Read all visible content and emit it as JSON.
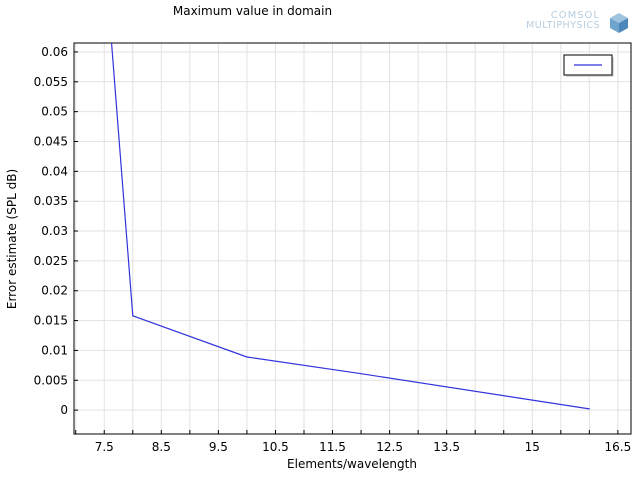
{
  "title": "Maximum value in domain",
  "logo": {
    "line1": "COMSOL",
    "line2": "MULTIPHYSICS"
  },
  "chart_data": {
    "type": "line",
    "title": "Maximum value in domain",
    "xlabel": "Elements/wavelength",
    "ylabel": "Error estimate (SPL dB)",
    "xlim": [
      6.97,
      16.73
    ],
    "ylim": [
      -0.004,
      0.0615
    ],
    "xticks": [
      "7.5",
      "8.5",
      "9.5",
      "10.5",
      "11.5",
      "12.5",
      "13.5",
      "15",
      "16.5"
    ],
    "xtick_values": [
      7.5,
      8.5,
      9.5,
      10.5,
      11.5,
      12.5,
      13.5,
      15,
      16.5
    ],
    "yticks": [
      "0",
      "0.005",
      "0.01",
      "0.015",
      "0.02",
      "0.025",
      "0.03",
      "0.035",
      "0.04",
      "0.045",
      "0.05",
      "0.055",
      "0.06"
    ],
    "ytick_values": [
      0,
      0.005,
      0.01,
      0.015,
      0.02,
      0.025,
      0.03,
      0.035,
      0.04,
      0.045,
      0.05,
      0.055,
      0.06
    ],
    "grid": true,
    "legend_position": "top-right",
    "series": [
      {
        "color": "#3333dd",
        "x": [
          7.5,
          8.0,
          10.0,
          12.0,
          16.0
        ],
        "y": [
          0.0773,
          0.0158,
          0.0089,
          0.0061,
          0.0002
        ]
      }
    ]
  }
}
